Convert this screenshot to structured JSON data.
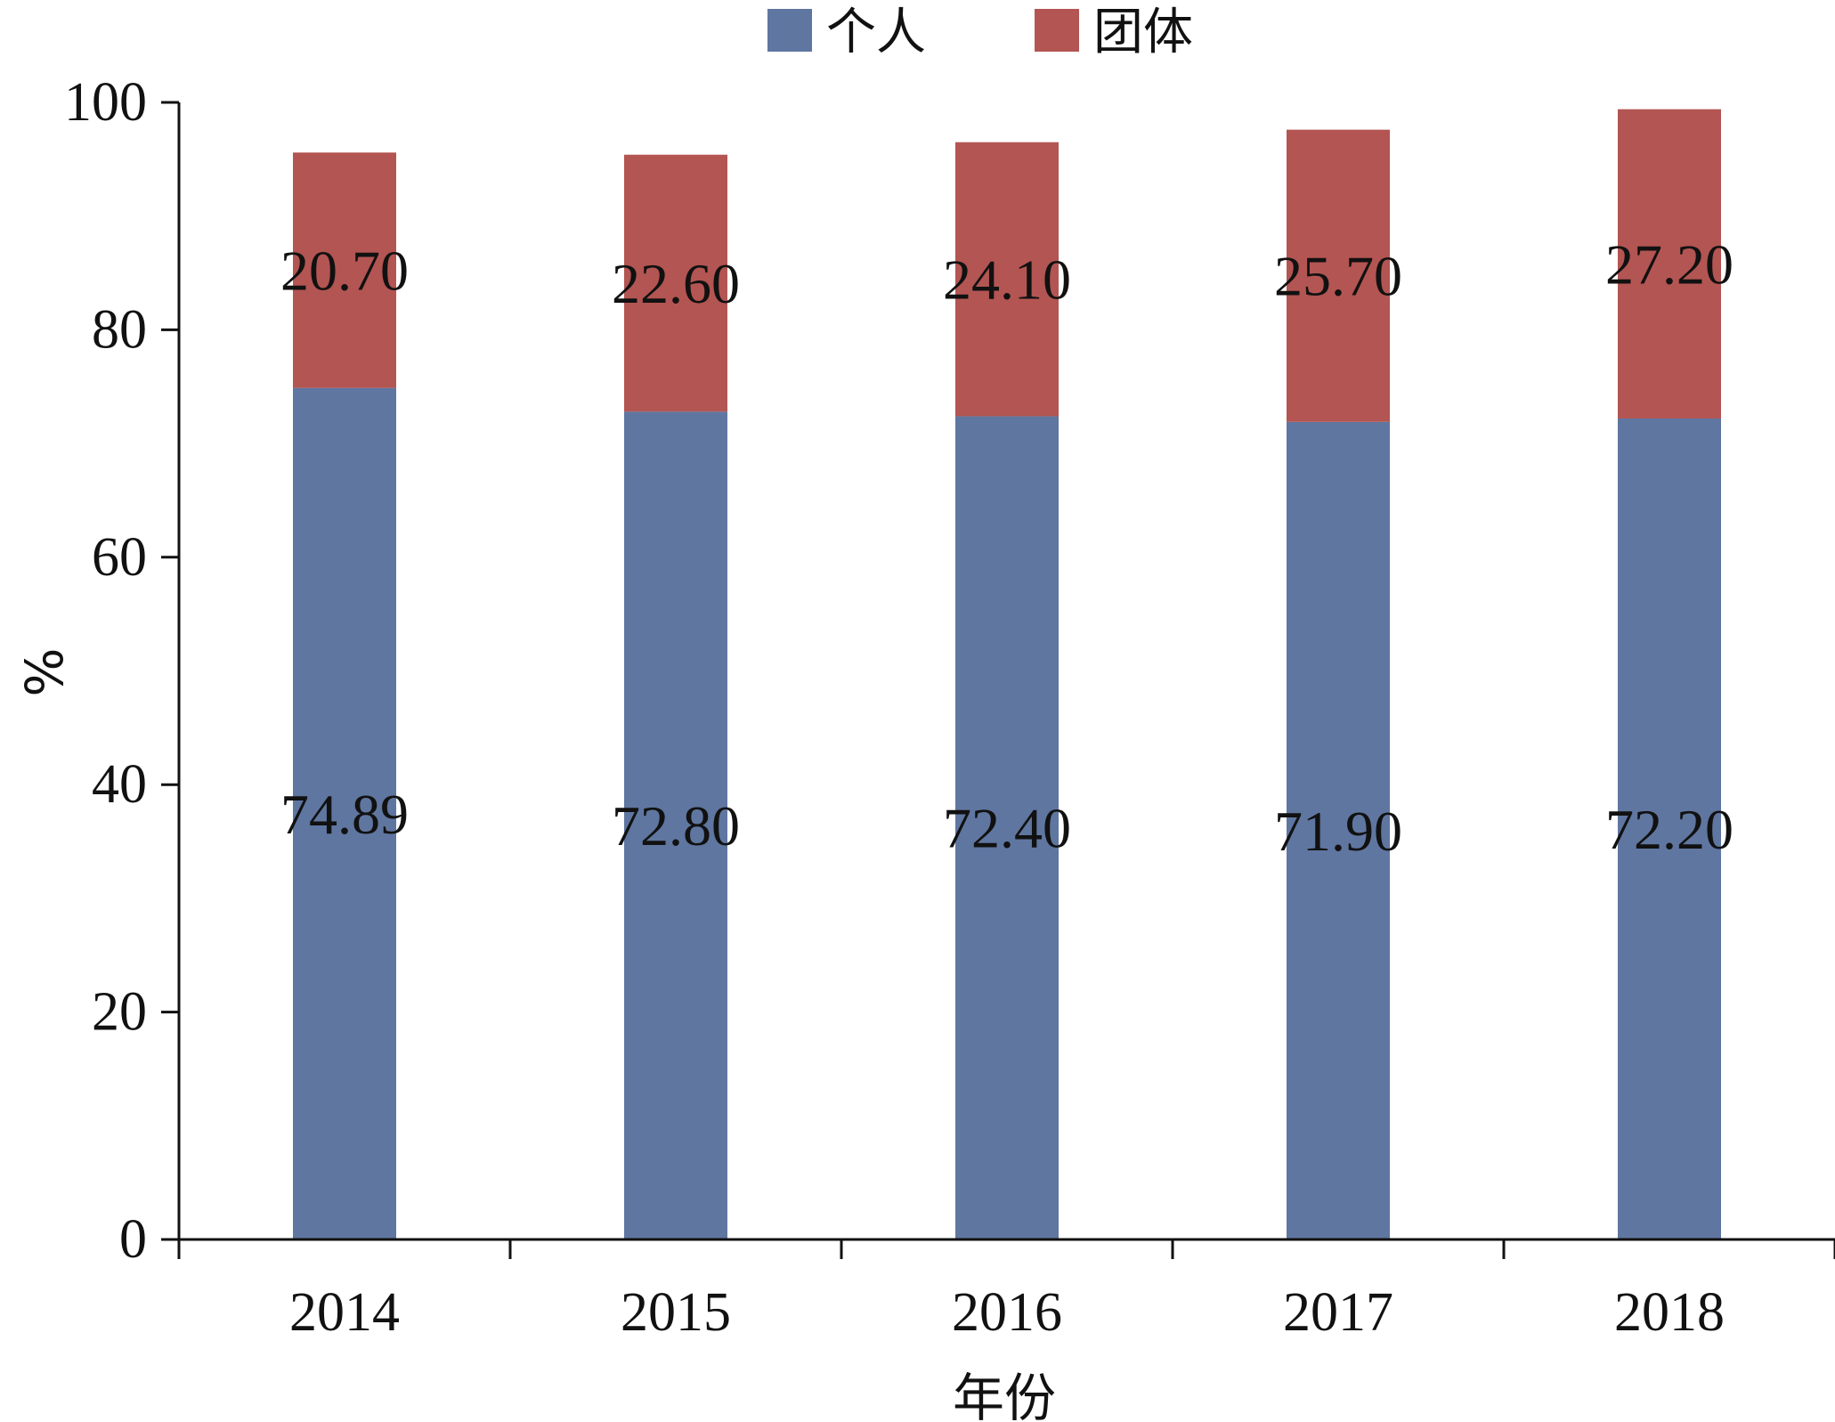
{
  "chart_data": {
    "type": "bar",
    "stacked": true,
    "categories": [
      "2014",
      "2015",
      "2016",
      "2017",
      "2018"
    ],
    "series": [
      {
        "name": "个人",
        "values": [
          74.89,
          72.8,
          72.4,
          71.9,
          72.2
        ],
        "labels": [
          "74.89",
          "72.80",
          "72.40",
          "71.90",
          "72.20"
        ],
        "color": "#5f76a0"
      },
      {
        "name": "团体",
        "values": [
          20.7,
          22.6,
          24.1,
          25.7,
          27.2
        ],
        "labels": [
          "20.70",
          "22.60",
          "24.10",
          "25.70",
          "27.20"
        ],
        "color": "#b35552"
      }
    ],
    "xlabel": "年份",
    "ylabel": "%",
    "ylim": [
      0,
      100
    ],
    "yticks": [
      0,
      20,
      40,
      60,
      80,
      100
    ],
    "legend_position": "top",
    "grid": false
  }
}
